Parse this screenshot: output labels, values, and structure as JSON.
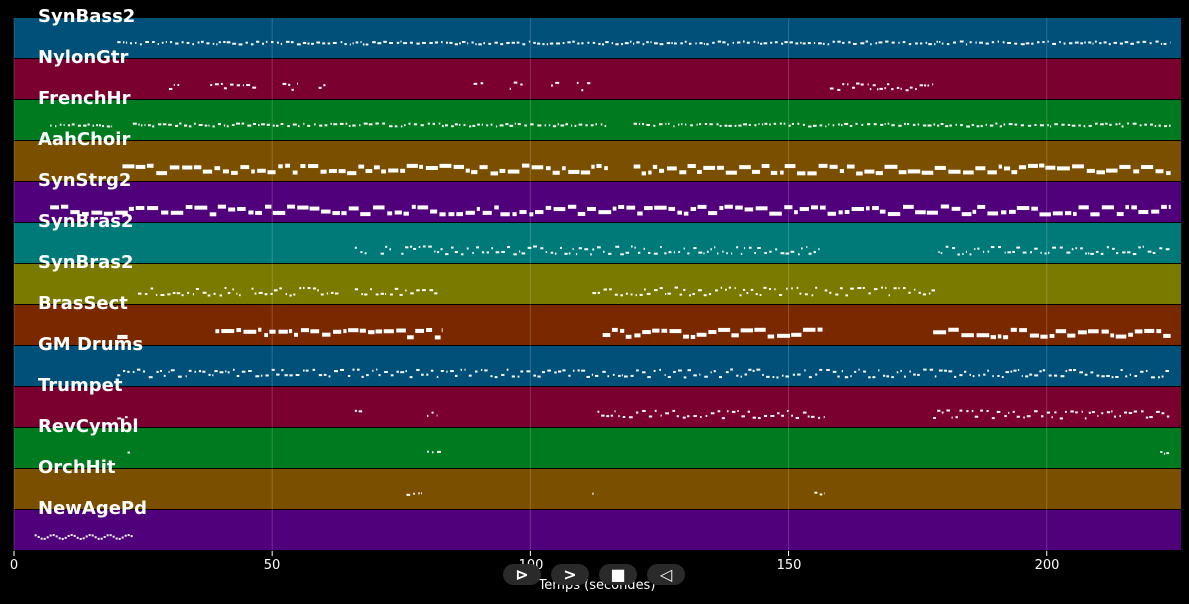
{
  "tracks": [
    {
      "name": "SynBass2",
      "color": "#005079",
      "spans": [
        [
          20,
          224
        ]
      ],
      "density": "sparse",
      "rows": 1
    },
    {
      "name": "NylonGtr",
      "color": "#7a0030",
      "spans": [
        [
          30,
          32
        ],
        [
          38,
          47
        ],
        [
          52,
          55
        ],
        [
          59,
          61
        ],
        [
          89,
          91
        ],
        [
          96,
          99
        ],
        [
          104,
          106
        ],
        [
          109,
          112
        ],
        [
          158,
          178
        ]
      ],
      "density": "sparse",
      "rows": 2
    },
    {
      "name": "FrenchHr",
      "color": "#007a1f",
      "spans": [
        [
          7,
          19
        ],
        [
          23,
          115
        ],
        [
          120,
          224
        ]
      ],
      "density": "sparse",
      "rows": 1
    },
    {
      "name": "AahChoir",
      "color": "#7a5000",
      "spans": [
        [
          21,
          115
        ],
        [
          120,
          224
        ]
      ],
      "density": "dense",
      "rows": 2
    },
    {
      "name": "SynStrg2",
      "color": "#50007a",
      "spans": [
        [
          7,
          224
        ]
      ],
      "density": "dense",
      "rows": 2
    },
    {
      "name": "SynBras2",
      "color": "#007a79",
      "spans": [
        [
          66,
          69
        ],
        [
          71,
          73
        ],
        [
          75,
          112
        ],
        [
          112,
          156
        ],
        [
          179,
          224
        ]
      ],
      "density": "sparse",
      "rows": 2
    },
    {
      "name": "SynBras2",
      "color": "#7a7a00",
      "spans": [
        [
          24,
          44
        ],
        [
          46,
          63
        ],
        [
          66,
          82
        ],
        [
          112,
          156
        ],
        [
          157,
          179
        ]
      ],
      "density": "sparse",
      "rows": 2
    },
    {
      "name": "BrasSect",
      "color": "#7a2800",
      "spans": [
        [
          20,
          22
        ],
        [
          39,
          83
        ],
        [
          114,
          157
        ],
        [
          178,
          224
        ]
      ],
      "density": "dense",
      "rows": 2
    },
    {
      "name": "GM Drums",
      "color": "#005079",
      "spans": [
        [
          20,
          224
        ]
      ],
      "density": "sparse",
      "rows": 2
    },
    {
      "name": "Trumpet",
      "color": "#7a0030",
      "spans": [
        [
          20,
          22
        ],
        [
          66,
          68
        ],
        [
          80,
          82
        ],
        [
          113,
          157
        ],
        [
          178,
          224
        ]
      ],
      "density": "sparse",
      "rows": 2
    },
    {
      "name": "RevCymbl",
      "color": "#007a1f",
      "spans": [
        [
          22,
          23
        ],
        [
          80,
          83
        ],
        [
          222,
          224
        ]
      ],
      "density": "sparse",
      "rows": 1
    },
    {
      "name": "OrchHit",
      "color": "#7a5000",
      "spans": [
        [
          76,
          79
        ],
        [
          112,
          113
        ],
        [
          155,
          157
        ]
      ],
      "density": "sparse",
      "rows": 1
    },
    {
      "name": "NewAgePd",
      "color": "#50007a",
      "spans": [
        [
          4,
          23
        ]
      ],
      "density": "wave",
      "rows": 1
    }
  ],
  "axis": {
    "xmin": 0,
    "xmax": 226,
    "ticks": [
      0,
      50,
      100,
      150,
      200
    ],
    "tick_labels": [
      "0",
      "50",
      "100",
      "150",
      "200"
    ],
    "xlabel": "Temps (secondes)"
  },
  "controls": [
    {
      "name": "play-button",
      "glyph": "⊳"
    },
    {
      "name": "forward-button",
      "glyph": ">"
    },
    {
      "name": "stop-button",
      "glyph": "■"
    },
    {
      "name": "back-button",
      "glyph": "◁"
    }
  ]
}
